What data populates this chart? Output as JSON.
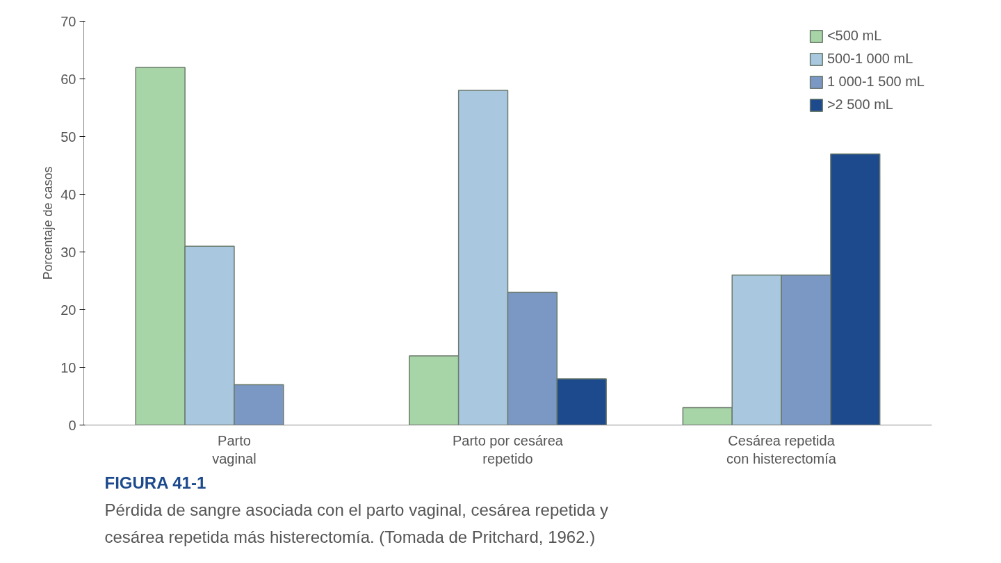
{
  "chart_data": {
    "type": "bar",
    "ylabel": "Porcentaje de casos",
    "categories": [
      "Parto\nvaginal",
      "Parto por cesárea\nrepetido",
      "Cesárea repetida\ncon histerectomía"
    ],
    "series": [
      {
        "name": "<500 mL",
        "color": "#a8d5a8",
        "values": [
          62,
          12,
          3
        ]
      },
      {
        "name": "500-1 000 mL",
        "color": "#a9c8e0",
        "values": [
          31,
          58,
          26
        ]
      },
      {
        "name": "1 000-1 500 mL",
        "color": "#7b97c4",
        "values": [
          7,
          23,
          26
        ]
      },
      {
        "name": ">2 500 mL",
        "color": "#1c4a8c",
        "values": [
          null,
          8,
          47
        ]
      }
    ],
    "ylim": [
      0,
      70
    ],
    "yticks": [
      0,
      10,
      20,
      30,
      40,
      50,
      60,
      70
    ],
    "grid": false,
    "legend": "top right",
    "annotations": [
      "FIGURA 41-1",
      "Pérdida de sangre asociada con el parto vaginal, cesárea repetida y cesárea repetida más histerectomía. (Tomada de Pritchard, 1962.)"
    ]
  }
}
